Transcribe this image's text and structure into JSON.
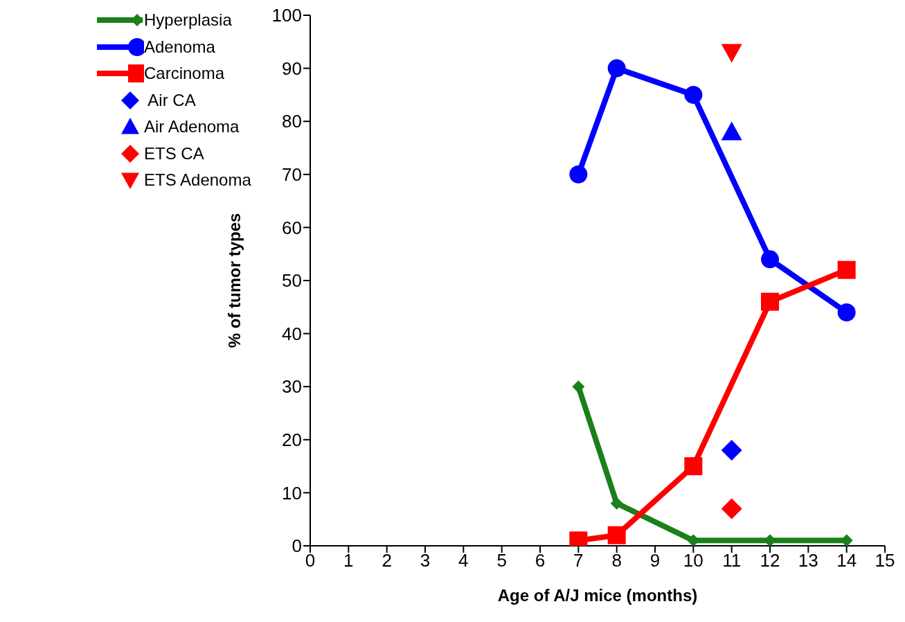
{
  "chart_data": {
    "type": "line",
    "xlabel": "Age of A/J mice (months)",
    "ylabel": "% of tumor types",
    "xlim": [
      0,
      15
    ],
    "xticks": [
      0,
      1,
      2,
      3,
      4,
      5,
      6,
      7,
      8,
      9,
      10,
      11,
      12,
      13,
      14,
      15
    ],
    "ylim": [
      0,
      100
    ],
    "yticks": [
      0,
      10,
      20,
      30,
      40,
      50,
      60,
      70,
      80,
      90,
      100
    ],
    "grid": false,
    "legend": "top left",
    "series": [
      {
        "name": "Hyperplasia",
        "color": "#1a801a",
        "marker": "diamond",
        "x": [
          7,
          8,
          10,
          12,
          14
        ],
        "values": [
          30,
          8,
          1,
          1,
          1
        ]
      },
      {
        "name": "Adenoma",
        "color": "#0000ff",
        "marker": "circle",
        "x": [
          7,
          8,
          10,
          12,
          14
        ],
        "values": [
          70,
          90,
          85,
          54,
          44
        ]
      },
      {
        "name": "Carcinoma",
        "color": "#ff0000",
        "marker": "square",
        "x": [
          7,
          8,
          10,
          12,
          14
        ],
        "values": [
          1,
          2,
          15,
          46,
          52
        ]
      },
      {
        "name": " Air CA",
        "type": "scatter",
        "color": "#0000ff",
        "marker": "diamond",
        "x": [
          11
        ],
        "values": [
          18
        ]
      },
      {
        "name": "Air Adenoma",
        "type": "scatter",
        "color": "#0000ff",
        "marker": "triangle",
        "x": [
          11
        ],
        "values": [
          78
        ]
      },
      {
        "name": "ETS CA",
        "type": "scatter",
        "color": "#ff0000",
        "marker": "diamond",
        "x": [
          11
        ],
        "values": [
          7
        ]
      },
      {
        "name": "ETS Adenoma",
        "type": "scatter",
        "color": "#ff0000",
        "marker": "triangle-down",
        "x": [
          11
        ],
        "values": [
          93
        ]
      }
    ]
  }
}
